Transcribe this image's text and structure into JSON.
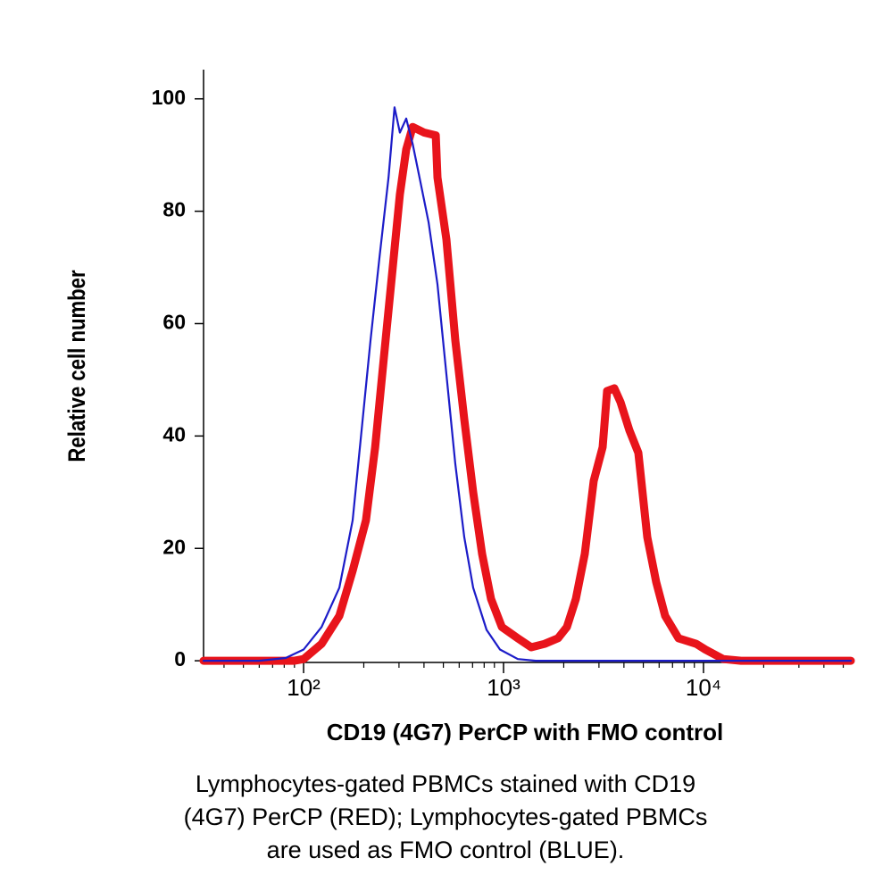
{
  "chart_data": {
    "type": "line",
    "x_label": "CD19 (4G7) PerCP with FMO control",
    "y_label": "Relative cell number",
    "caption": [
      "Lymphocytes-gated PBMCs stained with CD19",
      "(4G7) PerCP (RED); Lymphocytes-gated PBMCs",
      "are used as FMO control (BLUE)."
    ],
    "x_scale": "log",
    "xlim": [
      31.6,
      54550
    ],
    "ylim": [
      -0.3,
      105.2
    ],
    "xticks": [
      {
        "value": 100,
        "label": "10²"
      },
      {
        "value": 1000,
        "label": "10³"
      },
      {
        "value": 10000,
        "label": "10⁴"
      }
    ],
    "minor_xticks": [
      40,
      50,
      60,
      70,
      80,
      90,
      200,
      300,
      400,
      500,
      600,
      700,
      800,
      900,
      2000,
      3000,
      4000,
      5000,
      6000,
      7000,
      8000,
      9000,
      20000,
      30000,
      40000,
      50000
    ],
    "yticks": [
      0,
      20,
      40,
      60,
      80,
      100
    ],
    "series": [
      {
        "name": "FMO control",
        "color": "#1c1cc8",
        "width": 2.2,
        "x": [
          31.6,
          59.8,
          81.4,
          100,
          123,
          151,
          176,
          195,
          216,
          240,
          266,
          285,
          303,
          326,
          351,
          380,
          422,
          467,
          518,
          574,
          636,
          705,
          822,
          960,
          1178,
          1448,
          54550
        ],
        "values": [
          0,
          0,
          0.5,
          2,
          6,
          13,
          25,
          41,
          57,
          72,
          86,
          98.5,
          94,
          96.5,
          92,
          86,
          78,
          67,
          51,
          35,
          22,
          13,
          5.5,
          2,
          0.3,
          0,
          0
        ]
      },
      {
        "name": "CD19 (4G7) PerCP",
        "color": "#e8141b",
        "width": 9,
        "x": [
          31.6,
          66.3,
          90,
          100,
          123,
          151,
          176,
          205,
          228,
          252,
          279,
          303,
          326,
          351,
          401,
          458,
          467,
          518,
          574,
          636,
          705,
          781,
          866,
          980,
          1178,
          1375,
          1604,
          1872,
          2075,
          2300,
          2548,
          2825,
          3131,
          3296,
          3581,
          3849,
          4260,
          4720,
          5232,
          5800,
          6429,
          7499,
          9204,
          10210,
          12540,
          15400,
          54550
        ],
        "values": [
          0,
          0,
          0,
          0.3,
          3,
          8,
          16,
          25,
          38,
          54,
          70,
          83,
          91,
          95,
          94,
          93.5,
          86,
          75,
          57,
          43,
          30,
          19,
          11,
          6,
          4,
          2.4,
          3,
          4,
          6,
          11,
          19,
          32,
          38,
          48,
          48.5,
          46,
          41,
          37,
          22,
          14,
          8,
          4,
          3,
          2,
          0.3,
          0,
          0
        ]
      }
    ]
  }
}
